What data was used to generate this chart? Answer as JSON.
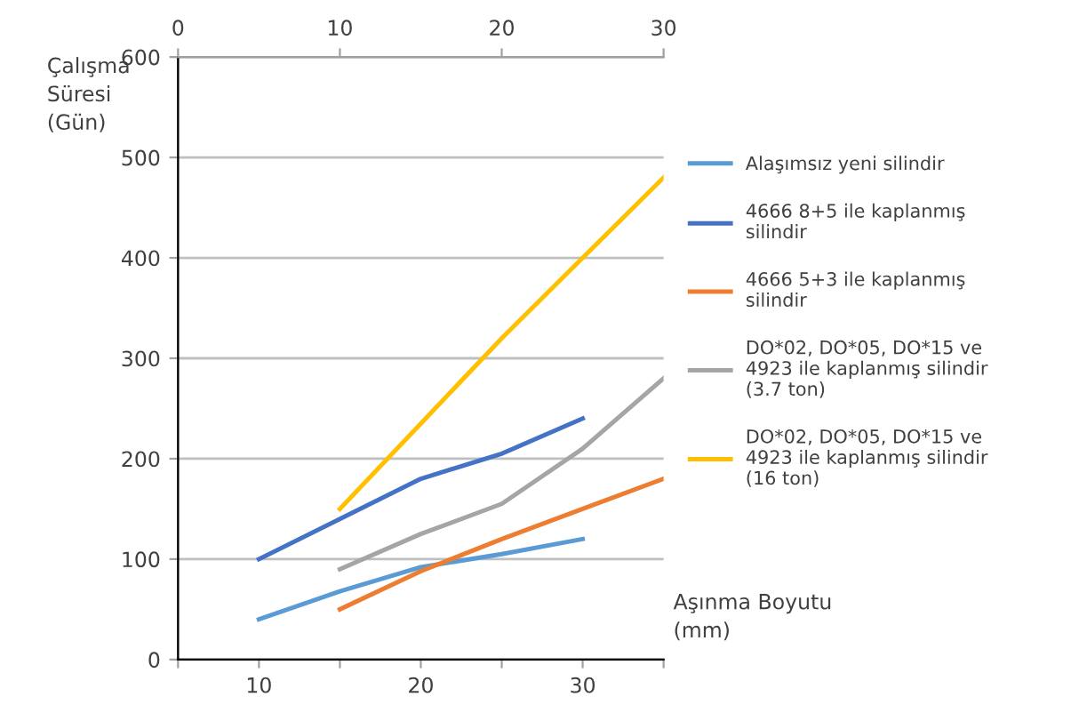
{
  "chart_data": {
    "type": "line",
    "ylabel": "Çalışma\nSüresi\n(Gün)",
    "xlabel": "Aşınma Boyutu\n(mm)",
    "xlim": [
      5,
      35
    ],
    "xticks": [
      {
        "value": 5,
        "label": null
      },
      10,
      {
        "value": 15,
        "label": null
      },
      20,
      {
        "value": 25,
        "label": null
      },
      30,
      {
        "value": 35,
        "label": null
      }
    ],
    "x2lim": [
      0,
      30
    ],
    "x2ticks": [
      0,
      10,
      20,
      30
    ],
    "ylim": [
      0,
      600
    ],
    "yticks": [
      0,
      100,
      200,
      300,
      400,
      500,
      600
    ],
    "grid": "y",
    "legend": "right",
    "line_style": "solid",
    "series": [
      {
        "name": "Alaşımsız yeni silindir",
        "color": "#5b9bd5",
        "x": [
          10,
          15,
          20,
          25,
          30
        ],
        "values": [
          40,
          68,
          92,
          105,
          120
        ]
      },
      {
        "name": "4666 8+5 ile kaplanmış\nsilindir",
        "color": "#4472c4",
        "x": [
          10,
          15,
          20,
          25,
          30
        ],
        "values": [
          100,
          140,
          180,
          205,
          240
        ]
      },
      {
        "name": "4666 5+3 ile kaplanmış\nsilindir",
        "color": "#ed7d31",
        "x": [
          15,
          20,
          25,
          30,
          35
        ],
        "values": [
          50,
          88,
          120,
          150,
          180
        ]
      },
      {
        "name": "DO*02, DO*05, DO*15 ve\n4923 ile kaplanmış silindir\n(3.7 ton)",
        "color": "#a5a5a5",
        "x": [
          15,
          20,
          25,
          30,
          35
        ],
        "values": [
          90,
          125,
          155,
          210,
          280
        ]
      },
      {
        "name": "DO*02, DO*05, DO*15 ve\n4923 ile kaplanmış silindir\n(16 ton)",
        "color": "#ffc000",
        "x": [
          15,
          20,
          25,
          30,
          35
        ],
        "values": [
          150,
          235,
          320,
          400,
          480
        ]
      }
    ]
  }
}
